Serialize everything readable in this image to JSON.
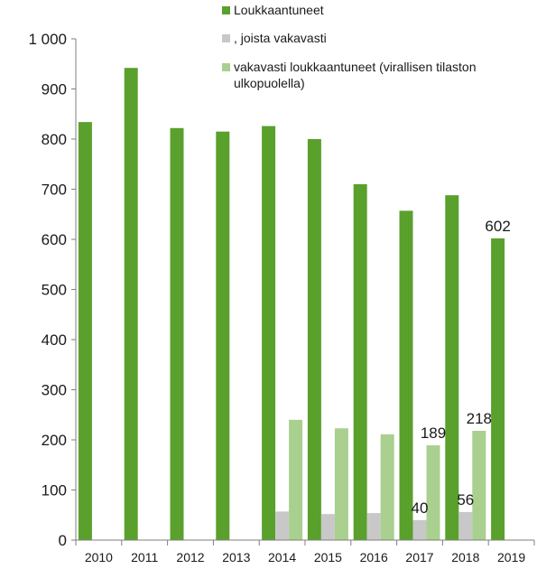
{
  "chart_data": {
    "type": "bar",
    "categories": [
      "2010",
      "2011",
      "2012",
      "2013",
      "2014",
      "2015",
      "2016",
      "2017",
      "2018",
      "2019"
    ],
    "series": [
      {
        "name": "Loukkaantuneet",
        "color": "#5aa02c",
        "values": [
          834,
          942,
          822,
          815,
          826,
          800,
          710,
          657,
          688,
          602
        ]
      },
      {
        "name": ", joista vakavasti",
        "color": "#c8c8c8",
        "values": [
          null,
          null,
          null,
          null,
          57,
          52,
          54,
          40,
          56,
          null
        ]
      },
      {
        "name": "vakavasti loukkaantuneet (virallisen tilaston ulkopuolella)",
        "color": "#a9d08e",
        "values": [
          null,
          null,
          null,
          null,
          240,
          223,
          211,
          189,
          218,
          null
        ]
      }
    ],
    "data_labels": [
      {
        "series": 0,
        "category": "2019",
        "text": "602"
      },
      {
        "series": 1,
        "category": "2017",
        "text": "40"
      },
      {
        "series": 2,
        "category": "2017",
        "text": "189"
      },
      {
        "series": 1,
        "category": "2018",
        "text": "56"
      },
      {
        "series": 2,
        "category": "2018",
        "text": "218"
      }
    ],
    "yticks": [
      {
        "value": 0,
        "label": "0"
      },
      {
        "value": 100,
        "label": "100"
      },
      {
        "value": 200,
        "label": "200"
      },
      {
        "value": 300,
        "label": "300"
      },
      {
        "value": 400,
        "label": "400"
      },
      {
        "value": 500,
        "label": "500"
      },
      {
        "value": 600,
        "label": "600"
      },
      {
        "value": 700,
        "label": "700"
      },
      {
        "value": 800,
        "label": "800"
      },
      {
        "value": 900,
        "label": "900"
      },
      {
        "value": 1000,
        "label": "1 000"
      }
    ],
    "ylim": [
      0,
      1000
    ],
    "grid": false,
    "legend": {
      "placement": "top-right",
      "entries": [
        {
          "lines": [
            "Loukkaantuneet"
          ],
          "color": "#5aa02c"
        },
        {
          "lines": [
            ", joista vakavasti"
          ],
          "color": "#c8c8c8"
        },
        {
          "lines": [
            "vakavasti loukkaantuneet (virallisen tilaston",
            "ulkopuolella)"
          ],
          "color": "#a9d08e"
        }
      ]
    }
  }
}
